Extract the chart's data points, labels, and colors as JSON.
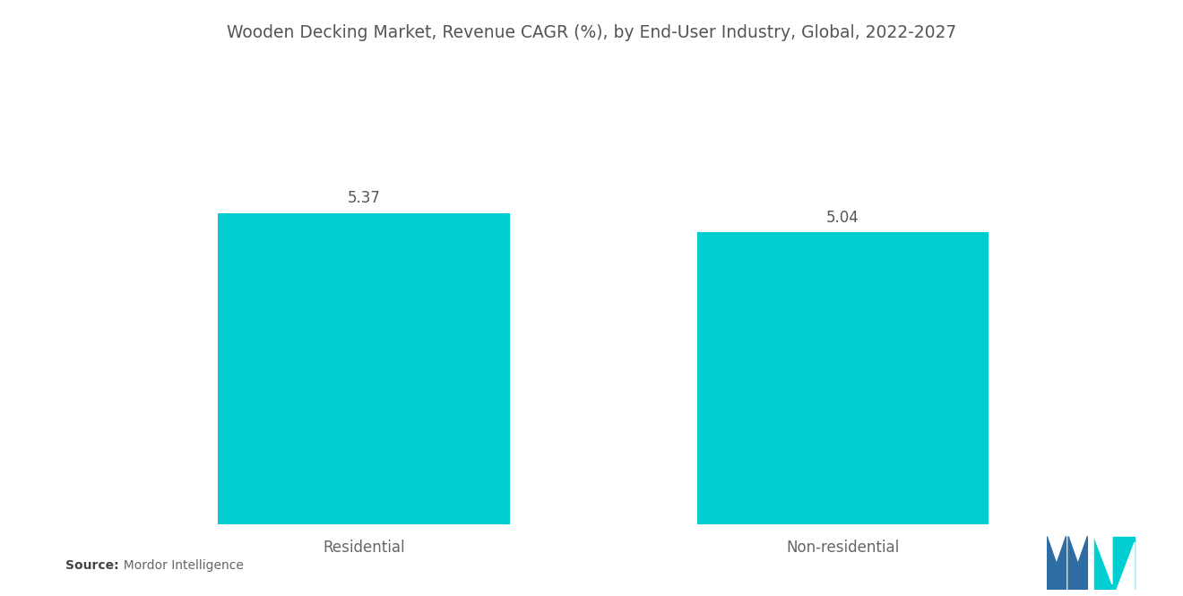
{
  "title": "Wooden Decking Market, Revenue CAGR (%), by End-User Industry, Global, 2022-2027",
  "categories": [
    "Residential",
    "Non-residential"
  ],
  "values": [
    5.37,
    5.04
  ],
  "bar_color": "#00CED1",
  "value_labels": [
    "5.37",
    "5.04"
  ],
  "background_color": "#ffffff",
  "title_color": "#555555",
  "label_color": "#666666",
  "value_color": "#555555",
  "title_fontsize": 13.5,
  "label_fontsize": 12,
  "value_fontsize": 12,
  "ylim": [
    0,
    7.2
  ],
  "source_bold": "Source:",
  "source_normal": "  Mordor Intelligence",
  "bar_width": 0.28,
  "x_positions": [
    0.27,
    0.73
  ],
  "xlim": [
    0,
    1
  ],
  "logo_m_color": "#2E6DA4",
  "logo_n_color": "#00CED1"
}
